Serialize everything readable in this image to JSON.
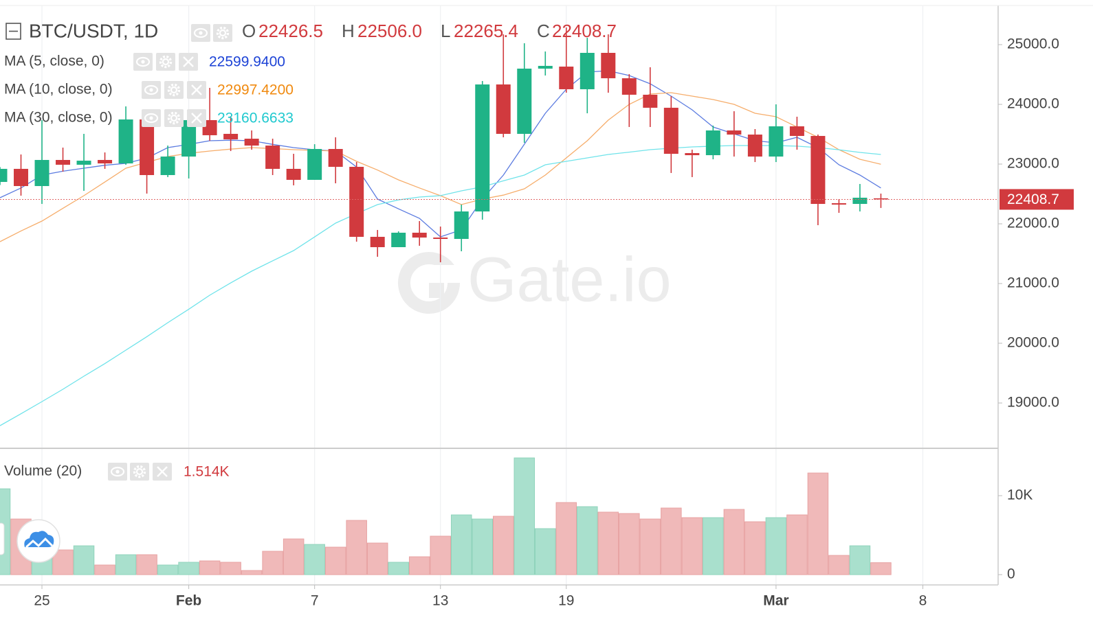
{
  "chart_data": {
    "type": "candlestick",
    "title": "BTC/USDT, 1D",
    "ohlc_letters": {
      "open": "O",
      "high": "H",
      "low": "L",
      "close": "C"
    },
    "last_labels": {
      "open": "22426.5",
      "high": "22506.0",
      "low": "22265.4",
      "close": "22408.7"
    },
    "x": [
      "01-23",
      "01-24",
      "01-25",
      "01-26",
      "01-27",
      "01-28",
      "01-29",
      "01-30",
      "01-31",
      "02-01",
      "02-02",
      "02-03",
      "02-04",
      "02-05",
      "02-06",
      "02-07",
      "02-08",
      "02-09",
      "02-10",
      "02-11",
      "02-12",
      "02-13",
      "02-14",
      "02-15",
      "02-16",
      "02-17",
      "02-18",
      "02-19",
      "02-20",
      "02-21",
      "02-22",
      "02-23",
      "02-24",
      "02-25",
      "02-26",
      "02-27",
      "02-28",
      "03-01",
      "03-02",
      "03-03",
      "03-04",
      "03-05",
      "03-06"
    ],
    "xlim": [
      "01-23",
      "03-11"
    ],
    "xticks": [
      {
        "value": "01-25",
        "label": "25"
      },
      {
        "value": "02-01",
        "label": "Feb"
      },
      {
        "value": "02-07",
        "label": "7"
      },
      {
        "value": "02-13",
        "label": "13"
      },
      {
        "value": "02-19",
        "label": "19"
      },
      {
        "value": "03-01",
        "label": "Mar"
      },
      {
        "value": "03-08",
        "label": "8"
      }
    ],
    "open": [
      22701,
      22920,
      22632,
      23069,
      22989,
      23069,
      23011,
      23747,
      22816,
      23126,
      23736,
      23506,
      23425,
      23310,
      22920,
      22736,
      23253,
      22954,
      21782,
      21609,
      21851,
      21770,
      21747,
      22207,
      24333,
      23506,
      24598,
      24632,
      24253,
      24862,
      24437,
      24161,
      23943,
      23184,
      23149,
      23563,
      23494,
      23126,
      23632,
      23471,
      22345,
      22333,
      22426.5
    ],
    "high": [
      22950,
      23161,
      23736,
      23276,
      23506,
      23195,
      23966,
      23770,
      23310,
      23793,
      24276,
      23793,
      23563,
      23425,
      23172,
      23333,
      23448,
      23034,
      21897,
      21874,
      22046,
      21954,
      22322,
      24391,
      25172,
      25023,
      24885,
      25287,
      25115,
      25172,
      24506,
      24621,
      24138,
      23241,
      23644,
      23885,
      23586,
      24000,
      23793,
      23494,
      22414,
      22667,
      22506.0
    ],
    "low": [
      22650,
      22471,
      22333,
      22874,
      22552,
      22920,
      22989,
      22506,
      22782,
      22759,
      23391,
      23218,
      23241,
      22816,
      22644,
      22736,
      22678,
      21701,
      21448,
      21609,
      21632,
      21356,
      21540,
      22069,
      23448,
      23356,
      24483,
      24195,
      23851,
      24195,
      23621,
      23621,
      22851,
      22782,
      23080,
      23126,
      23034,
      23034,
      23241,
      21977,
      22184,
      22207,
      22265.4
    ],
    "close": [
      22920,
      22632,
      23069,
      22989,
      23057,
      23011,
      23747,
      22816,
      23126,
      23736,
      23483,
      23414,
      23310,
      22920,
      22736,
      23253,
      22954,
      21782,
      21609,
      21851,
      21770,
      21747,
      22207,
      24333,
      23506,
      24598,
      24644,
      24253,
      24862,
      24437,
      24161,
      23943,
      23172,
      23149,
      23563,
      23494,
      23126,
      23632,
      23471,
      22333,
      22322,
      22437,
      22408.7
    ],
    "up_color": "#1fb387",
    "down_color": "#d13a3e",
    "ylim": [
      18253,
      25655
    ],
    "yticks": [
      {
        "value": 19000,
        "label": "19000.0"
      },
      {
        "value": 20000,
        "label": "20000.0"
      },
      {
        "value": 21000,
        "label": "21000.0"
      },
      {
        "value": 22000,
        "label": "22000.0"
      },
      {
        "value": 23000,
        "label": "23000.0"
      },
      {
        "value": 24000,
        "label": "24000.0"
      },
      {
        "value": 25000,
        "label": "25000.0"
      }
    ],
    "ma": [
      {
        "name": "MA (5, close, 0)",
        "color": "#5b7be0",
        "label_color": "#1e44d6",
        "last_label": "22599.9400",
        "values": [
          22437,
          22600,
          22816,
          22880,
          22931,
          22980,
          23011,
          23100,
          23276,
          23330,
          23391,
          23400,
          23391,
          23330,
          23276,
          23240,
          23218,
          22950,
          22414,
          22250,
          22092,
          21782,
          21900,
          22414,
          22816,
          23333,
          23851,
          24253,
          24540,
          24563,
          24483,
          24345,
          24138,
          23908,
          23621,
          23506,
          23391,
          23356,
          23448,
          23276,
          22989,
          22816,
          22599.94
        ]
      },
      {
        "name": "MA (10, close, 0)",
        "color": "#f6ad6b",
        "label_color": "#f08a10",
        "last_label": "22997.4200",
        "values": [
          21701,
          21880,
          22046,
          22260,
          22471,
          22700,
          22931,
          23030,
          23126,
          23180,
          23218,
          23250,
          23276,
          23260,
          23241,
          23230,
          23218,
          23046,
          22900,
          22736,
          22600,
          22471,
          22322,
          22414,
          22480,
          22586,
          22816,
          23103,
          23391,
          23736,
          24000,
          24172,
          24195,
          24138,
          24080,
          24000,
          23851,
          23793,
          23621,
          23448,
          23241,
          23080,
          22997.42
        ]
      },
      {
        "name": "MA (30, close, 0)",
        "color": "#6fe3ea",
        "label_color": "#1fc9cf",
        "last_label": "23160.6633",
        "values": [
          18621,
          18820,
          19023,
          19230,
          19448,
          19660,
          19885,
          20110,
          20345,
          20570,
          20805,
          21010,
          21207,
          21380,
          21552,
          21780,
          22011,
          22170,
          22322,
          22400,
          22448,
          22471,
          22552,
          22620,
          22720,
          22816,
          22989,
          23046,
          23103,
          23161,
          23200,
          23241,
          23265,
          23287,
          23300,
          23310,
          23310,
          23310,
          23300,
          23276,
          23240,
          23195,
          23160.6633
        ]
      }
    ],
    "volume": {
      "name": "Volume (20)",
      "last_label": "1.514K",
      "values": [
        10870,
        7043,
        2800,
        3130,
        3650,
        1217,
        2522,
        2522,
        1217,
        1565,
        1739,
        1565,
        522,
        2957,
        4522,
        3826,
        3478,
        6870,
        4000,
        1565,
        2261,
        4870,
        7565,
        7043,
        7391,
        14783,
        5826,
        9130,
        8609,
        7913,
        7739,
        7043,
        8435,
        7217,
        7217,
        8261,
        6696,
        7217,
        7565,
        12870,
        2435,
        3652,
        1514
      ],
      "ylim": [
        -1130,
        15826
      ],
      "yticks": [
        0,
        {
          "value": 10000,
          "label": "10K"
        }
      ],
      "up_color": "#a9e0cd",
      "down_color": "#f0b9b9"
    },
    "watermark": "Gate.io"
  }
}
